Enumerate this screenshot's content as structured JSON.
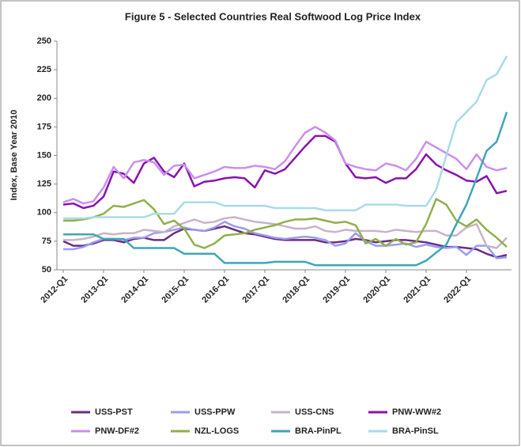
{
  "chart_data": {
    "type": "line",
    "title": "Figure 5 - Selected Countries Real Softwood Log Price Index",
    "y_label": "Index, Base Year 2010",
    "categories": [
      "2012-Q1",
      null,
      null,
      null,
      "2013-Q1",
      null,
      null,
      null,
      "2014-Q1",
      null,
      null,
      null,
      "2015-Q1",
      null,
      null,
      null,
      "2016-Q1",
      null,
      null,
      null,
      "2017-Q1",
      null,
      null,
      null,
      "2018-Q1",
      null,
      null,
      null,
      "2019-Q1",
      null,
      null,
      null,
      "2020-Q1",
      null,
      null,
      null,
      "2021-Q1",
      null,
      null,
      null,
      "2022-Q1",
      null,
      null,
      null,
      null
    ],
    "ylim": [
      50,
      250
    ],
    "yticks": [
      50,
      75,
      100,
      125,
      150,
      175,
      200,
      225,
      250
    ],
    "grid": false,
    "legend": "bottom",
    "series": [
      {
        "name": "USS-PST",
        "color": "#6a2c82",
        "values": [
          75,
          71,
          71,
          73,
          76,
          76,
          74,
          77,
          78,
          76,
          76,
          82,
          86,
          85,
          84,
          86,
          88,
          85,
          82,
          81,
          79,
          77,
          76,
          76,
          76,
          76,
          74,
          74,
          75,
          77,
          76,
          74,
          75,
          76,
          76,
          75,
          74,
          72,
          70,
          70,
          69,
          68,
          64,
          61,
          63
        ]
      },
      {
        "name": "USS-PPW",
        "color": "#9b9cf0",
        "values": [
          68,
          68,
          70,
          74,
          77,
          77,
          76,
          78,
          78,
          82,
          83,
          85,
          87,
          85,
          84,
          87,
          92,
          88,
          86,
          82,
          80,
          78,
          77,
          78,
          79,
          78,
          76,
          71,
          73,
          82,
          75,
          71,
          71,
          72,
          73,
          70,
          72,
          70,
          69,
          70,
          63,
          71,
          71,
          60,
          61
        ]
      },
      {
        "name": "USS-CNS",
        "color": "#c9b3c9",
        "values": [
          76,
          76,
          77,
          79,
          82,
          81,
          82,
          82,
          85,
          84,
          83,
          88,
          91,
          94,
          91,
          92,
          95,
          96,
          94,
          92,
          91,
          90,
          88,
          86,
          86,
          88,
          84,
          83,
          85,
          84,
          84,
          84,
          83,
          85,
          84,
          83,
          84,
          84,
          80,
          80,
          87,
          90,
          71,
          69,
          78
        ]
      },
      {
        "name": "PNW-WW#2",
        "color": "#8a12b0",
        "values": [
          107,
          108,
          104,
          106,
          114,
          136,
          134,
          126,
          143,
          148,
          136,
          131,
          143,
          123,
          127,
          128,
          130,
          131,
          130,
          122,
          137,
          134,
          138,
          148,
          158,
          167,
          167,
          162,
          143,
          131,
          130,
          131,
          126,
          130,
          130,
          138,
          151,
          142,
          137,
          133,
          128,
          127,
          132,
          117,
          119
        ]
      },
      {
        "name": "PNW-DF#2",
        "color": "#c990ec",
        "values": [
          109,
          112,
          108,
          110,
          122,
          140,
          130,
          144,
          146,
          144,
          133,
          141,
          142,
          130,
          133,
          136,
          140,
          139,
          139,
          141,
          140,
          138,
          145,
          158,
          170,
          175,
          170,
          163,
          143,
          140,
          138,
          137,
          143,
          141,
          137,
          147,
          162,
          157,
          152,
          147,
          138,
          151,
          140,
          137,
          139
        ]
      },
      {
        "name": "NZL-LOGS",
        "color": "#8fb04a",
        "values": [
          93,
          93,
          94,
          96,
          99,
          106,
          105,
          108,
          111,
          103,
          90,
          93,
          86,
          72,
          69,
          73,
          80,
          81,
          82,
          85,
          87,
          89,
          92,
          94,
          94,
          95,
          93,
          91,
          92,
          89,
          73,
          77,
          71,
          77,
          72,
          74,
          90,
          112,
          107,
          93,
          88,
          94,
          85,
          78,
          70
        ]
      },
      {
        "name": "BRA-PinPL",
        "color": "#3fa6b8",
        "values": [
          81,
          81,
          81,
          81,
          77,
          77,
          77,
          69,
          69,
          69,
          69,
          69,
          64,
          64,
          64,
          64,
          56,
          56,
          56,
          56,
          56,
          57,
          57,
          57,
          57,
          54,
          54,
          54,
          54,
          54,
          54,
          54,
          54,
          54,
          54,
          54,
          58,
          65,
          72,
          90,
          107,
          130,
          154,
          162,
          188
        ]
      },
      {
        "name": "BRA-PinSL",
        "color": "#a9dbe6",
        "values": [
          95,
          95,
          95,
          96,
          96,
          96,
          96,
          96,
          96,
          99,
          99,
          99,
          109,
          109,
          109,
          109,
          106,
          106,
          106,
          106,
          106,
          104,
          104,
          104,
          104,
          104,
          102,
          102,
          102,
          102,
          107,
          107,
          107,
          107,
          106,
          106,
          106,
          120,
          150,
          179,
          188,
          197,
          216,
          221,
          237
        ]
      }
    ]
  }
}
